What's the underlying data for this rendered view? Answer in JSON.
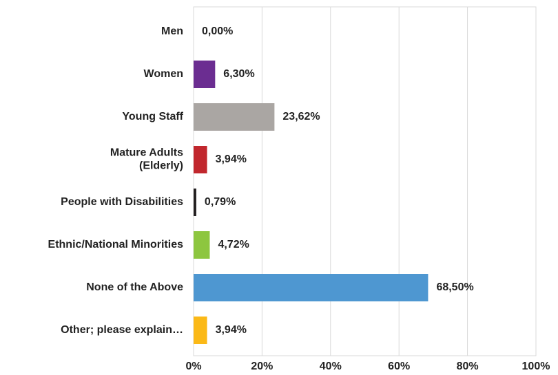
{
  "chart_data": {
    "type": "hbar",
    "categories": [
      "Men",
      "Women",
      "Young Staff",
      "Mature Adults\n(Elderly)",
      "People with Disabilities",
      "Ethnic/National Minorities",
      "None of the Above",
      "Other; please explain…"
    ],
    "values": [
      0,
      6.3,
      23.62,
      3.94,
      0.79,
      4.72,
      68.5,
      3.94
    ],
    "value_labels": [
      "0,00%",
      "6,30%",
      "23,62%",
      "3,94%",
      "0,79%",
      "4,72%",
      "68,50%",
      "3,94%"
    ],
    "colors": [
      "#2e8b8b",
      "#6b2d91",
      "#aaa6a3",
      "#c1272d",
      "#231f20",
      "#8dc63f",
      "#4e97d1",
      "#fbb917"
    ],
    "xlim": [
      0,
      100
    ],
    "xticks": [
      {
        "value": 0,
        "label": "0%"
      },
      {
        "value": 20,
        "label": "20%"
      },
      {
        "value": 40,
        "label": "40%"
      },
      {
        "value": 60,
        "label": "60%"
      },
      {
        "value": 80,
        "label": "80%"
      },
      {
        "value": 100,
        "label": "100%"
      }
    ],
    "grid": true
  }
}
